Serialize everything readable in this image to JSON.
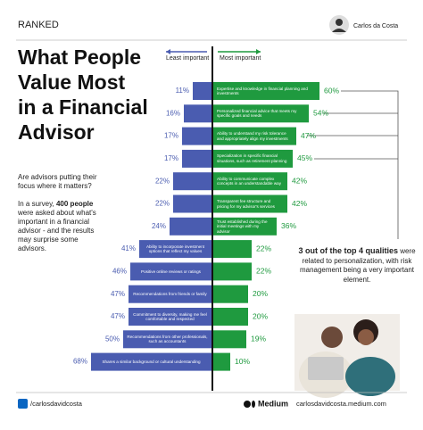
{
  "header": {
    "label": "RANKED",
    "author": "Carlos da Costa"
  },
  "title_lines": [
    "What People",
    "Value Most",
    "in a Financial",
    "Advisor"
  ],
  "intro": {
    "question": "Are advisors putting their focus where it matters?",
    "body": [
      "In a survey, ",
      "400 people",
      " were asked about what's important in a financial advisor - and the results may surprise some advisors."
    ]
  },
  "annotation": {
    "highlight": "3 out of the top 4 qualities",
    "text": "were related to personalization, with risk management being a very important element."
  },
  "footer": {
    "linkedin": "/carlosdavidcosta",
    "medium": "Medium",
    "site": "carlosdavidcosta.medium.com"
  },
  "chart_data": {
    "type": "diverging_bar",
    "categories": [
      "Expertise and knowledge in financial planning and investments",
      "Personalized financial advice that meets my specific goals and needs",
      "Ability to understand my risk tolerance and appropriately align my investments",
      "Specialization in specific financial situations, such as retirement planning",
      "Ability to communicate complex concepts in an understandable way",
      "Transparent fee structure and pricing for my advisor's services",
      "Trust established during the initial meetings with my advisor",
      "Ability to incorporate investment options that reflect my values",
      "Positive online reviews or ratings",
      "Recommendations from friends or family",
      "Commitment to diversity, making me feel comfortable and respected",
      "Recommendations from other professionals, such as accountants",
      "Shares a similar background or cultural understanding"
    ],
    "series": [
      {
        "name": "Least important",
        "color": "#4a5cb0",
        "values": [
          11,
          16,
          17,
          17,
          22,
          22,
          24,
          41,
          46,
          47,
          47,
          50,
          68
        ],
        "value_labels": [
          "11%",
          "16%",
          "17%",
          "17%",
          "22%",
          "22%",
          "24%",
          "41%",
          "46%",
          "47%",
          "47%",
          "50%",
          "68%"
        ]
      },
      {
        "name": "Most important",
        "color": "#1f9a3f",
        "values": [
          60,
          54,
          47,
          45,
          42,
          42,
          36,
          22,
          22,
          20,
          20,
          19,
          10
        ],
        "value_labels": [
          "60%",
          "54%",
          "47%",
          "45%",
          "42%",
          "42%",
          "36%",
          "22%",
          "22%",
          "20%",
          "20%",
          "19%",
          "10%"
        ]
      }
    ]
  }
}
